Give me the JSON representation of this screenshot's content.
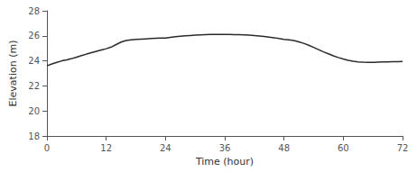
{
  "chart_data": {
    "type": "line",
    "x": [
      0,
      1,
      2,
      3,
      4,
      5,
      6,
      7,
      8,
      9,
      10,
      11,
      12,
      13,
      14,
      15,
      16,
      17,
      18,
      19,
      20,
      21,
      22,
      23,
      24,
      25,
      26,
      27,
      28,
      29,
      30,
      31,
      32,
      33,
      34,
      35,
      36,
      37,
      38,
      39,
      40,
      41,
      42,
      43,
      44,
      45,
      46,
      47,
      48,
      49,
      50,
      51,
      52,
      53,
      54,
      55,
      56,
      57,
      58,
      59,
      60,
      61,
      62,
      63,
      64,
      65,
      66,
      67,
      68,
      69,
      70,
      71,
      72
    ],
    "values": [
      23.6,
      23.75,
      23.88,
      24.0,
      24.08,
      24.18,
      24.3,
      24.42,
      24.54,
      24.65,
      24.76,
      24.87,
      24.97,
      25.1,
      25.3,
      25.5,
      25.62,
      25.68,
      25.72,
      25.74,
      25.76,
      25.78,
      25.8,
      25.82,
      25.82,
      25.88,
      25.93,
      25.97,
      26.0,
      26.03,
      26.06,
      26.08,
      26.1,
      26.11,
      26.12,
      26.12,
      26.12,
      26.11,
      26.1,
      26.09,
      26.07,
      26.05,
      26.02,
      25.99,
      25.95,
      25.9,
      25.85,
      25.78,
      25.72,
      25.68,
      25.62,
      25.52,
      25.4,
      25.25,
      25.08,
      24.9,
      24.72,
      24.56,
      24.4,
      24.27,
      24.15,
      24.05,
      23.97,
      23.92,
      23.9,
      23.89,
      23.89,
      23.9,
      23.91,
      23.92,
      23.93,
      23.94,
      23.95
    ],
    "xlabel": "Time (hour)",
    "ylabel": "Elevation (m)",
    "xlim": [
      0,
      72
    ],
    "ylim": [
      18,
      28
    ],
    "xticks": [
      0,
      12,
      24,
      36,
      48,
      60,
      72
    ],
    "yticks": [
      18,
      20,
      22,
      24,
      26,
      28
    ],
    "color": "#2a2a2a",
    "grid": false
  }
}
